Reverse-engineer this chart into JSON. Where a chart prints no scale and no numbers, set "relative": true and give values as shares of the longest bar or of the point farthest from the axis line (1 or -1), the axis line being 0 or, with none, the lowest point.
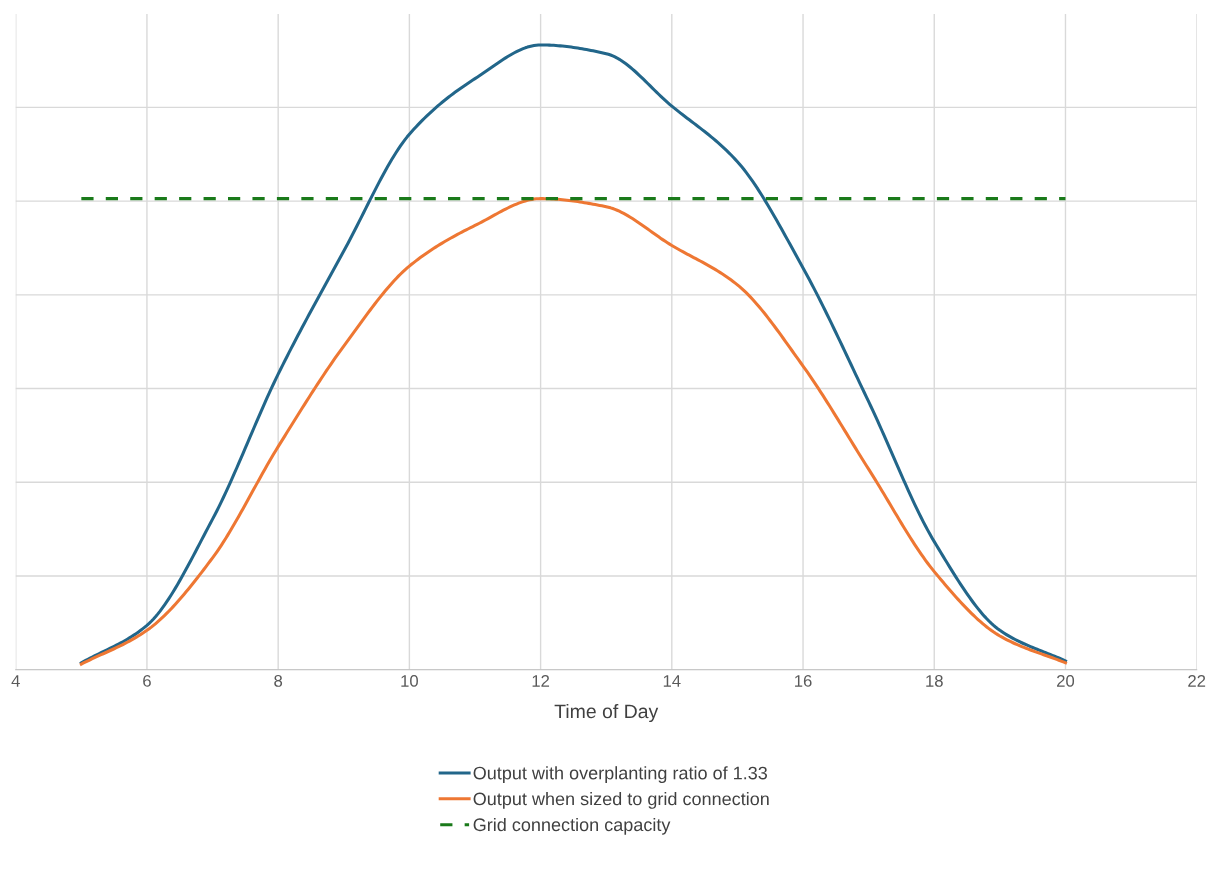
{
  "chart_data": {
    "type": "line",
    "relative": true,
    "xlabel": "Time of Day",
    "x": [
      5,
      6,
      7,
      8,
      9,
      10,
      11,
      12,
      13,
      14,
      15,
      16,
      17,
      18,
      19,
      20
    ],
    "xlim": [
      4,
      22
    ],
    "xticks": [
      4,
      6,
      8,
      10,
      12,
      14,
      16,
      18,
      20,
      22
    ],
    "grid": true,
    "legend": "bottom",
    "tick_labels": "x",
    "series": [
      {
        "name": "Output with overplanting ratio of 1.33",
        "color": "#22668a",
        "values": [
          0.011,
          0.071,
          0.241,
          0.473,
          0.67,
          0.857,
          0.946,
          1.0,
          0.986,
          0.902,
          0.813,
          0.643,
          0.429,
          0.205,
          0.063,
          0.014
        ]
      },
      {
        "name": "Output when sized to grid connection",
        "color": "#ee7733",
        "values": [
          0.009,
          0.063,
          0.179,
          0.357,
          0.518,
          0.646,
          0.711,
          0.754,
          0.741,
          0.679,
          0.616,
          0.486,
          0.321,
          0.157,
          0.054,
          0.011
        ]
      },
      {
        "name": "Grid connection capacity",
        "color": "#1a7a1a",
        "line_style": "dashed",
        "x": [
          5,
          20
        ],
        "values": [
          0.754,
          0.754
        ]
      }
    ]
  }
}
